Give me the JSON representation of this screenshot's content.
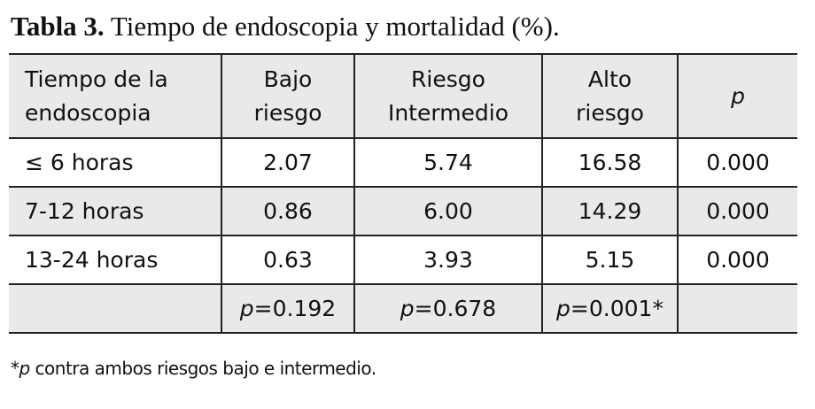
{
  "title": {
    "label": "Tabla 3.",
    "text": "Tiempo de endoscopia y mortalidad (%)."
  },
  "table": {
    "header": [
      "Tiempo de la endoscopia",
      "Bajo riesgo",
      "Riesgo Intermedio",
      "Alto riesgo",
      "p"
    ],
    "rows": [
      [
        "≤ 6 horas",
        "2.07",
        "5.74",
        "16.58",
        "0.000"
      ],
      [
        "7-12 horas",
        "0.86",
        "6.00",
        "14.29",
        "0.000"
      ],
      [
        "13-24 horas",
        "0.63",
        "3.93",
        "5.15",
        "0.000"
      ]
    ],
    "p_values": [
      "p=0.192",
      "p=0.678",
      "p=0.001*"
    ]
  },
  "footnote": "*p contra ambos riesgos bajo e intermedio."
}
